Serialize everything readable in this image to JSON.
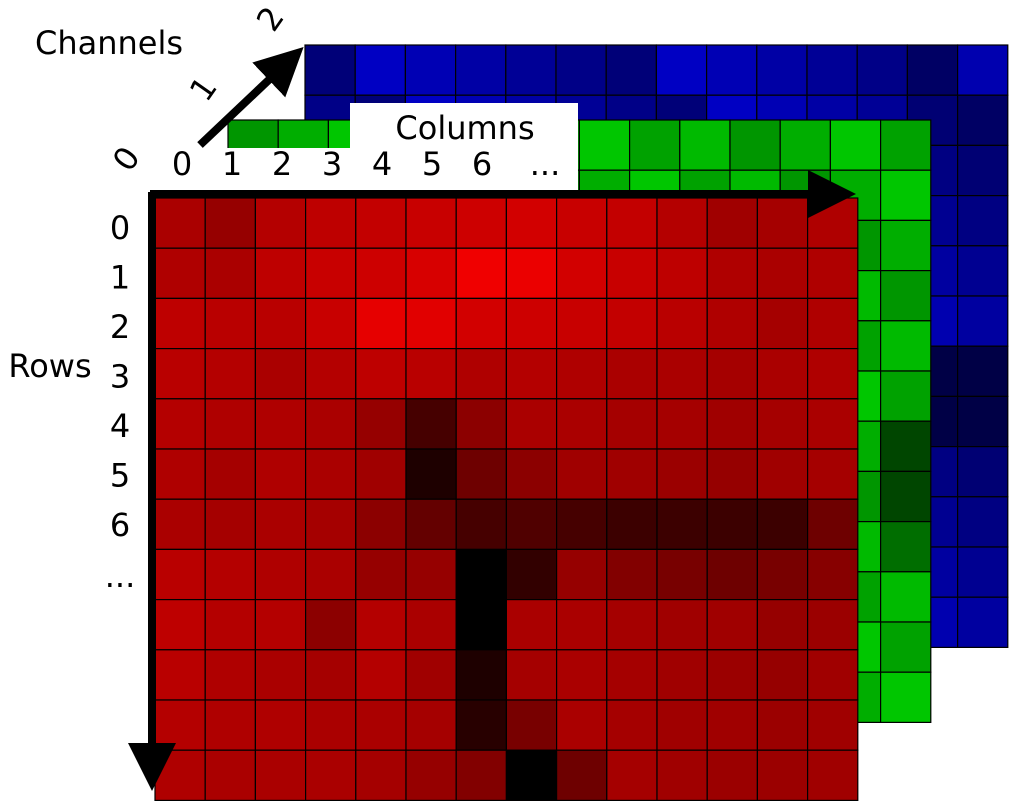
{
  "channels_axis": {
    "label": "Channels",
    "ticks": [
      "0",
      "1",
      "2"
    ]
  },
  "columns_axis": {
    "label": "Columns",
    "ticks": [
      "0",
      "1",
      "2",
      "3",
      "4",
      "5",
      "6",
      "..."
    ]
  },
  "rows_axis": {
    "label": "Rows",
    "ticks": [
      "0",
      "1",
      "2",
      "3",
      "4",
      "5",
      "6",
      "..."
    ]
  }
}
